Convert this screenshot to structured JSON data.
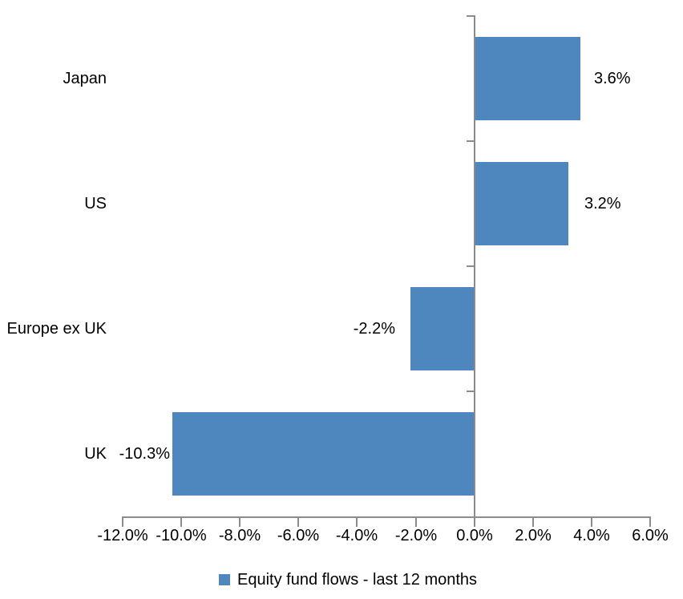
{
  "chart_data": {
    "type": "bar",
    "orientation": "horizontal",
    "categories": [
      "Japan",
      "US",
      "Europe ex UK",
      "UK"
    ],
    "values": [
      3.6,
      3.2,
      -2.2,
      -10.3
    ],
    "data_labels": [
      "3.6%",
      "3.2%",
      "-2.2%",
      "-10.3%"
    ],
    "series_name": "Equity fund flows - last 12 months",
    "xlim": [
      -12,
      6
    ],
    "x_tick_values": [
      -12,
      -10,
      -8,
      -6,
      -4,
      -2,
      0,
      2,
      4,
      6
    ],
    "x_tick_labels": [
      "-12.0%",
      "-10.0%",
      "-8.0%",
      "-6.0%",
      "-4.0%",
      "-2.0%",
      "0.0%",
      "2.0%",
      "4.0%",
      "6.0%"
    ],
    "grid": false,
    "legend_position": "bottom",
    "bar_color": "#4E87BD",
    "axis_color": "#8C8C8C",
    "text_color": "#000000"
  }
}
